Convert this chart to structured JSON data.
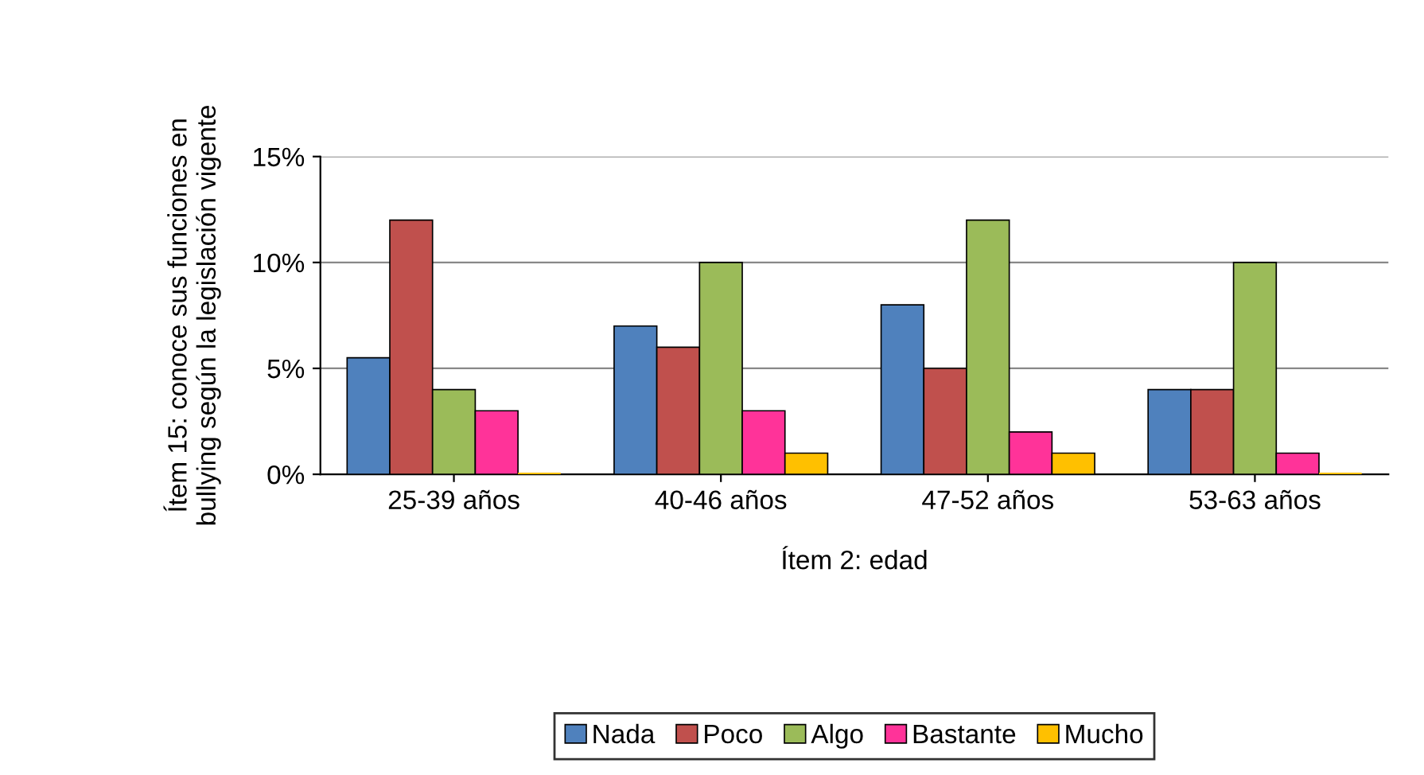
{
  "chart_data": {
    "type": "bar",
    "xlabel": "Ítem 2: edad",
    "ylabel": "Ítem 15: conoce sus funciones en\nbullying según la legislación vigente",
    "categories": [
      "25-39 años",
      "40-46 años",
      "47-52 años",
      "53-63 años"
    ],
    "series": [
      {
        "name": "Nada",
        "color": "#4f81bd",
        "values": [
          5.5,
          7,
          8,
          4
        ]
      },
      {
        "name": "Poco",
        "color": "#c0504d",
        "values": [
          12,
          6,
          5,
          4
        ]
      },
      {
        "name": "Algo",
        "color": "#9bbb59",
        "values": [
          4,
          10,
          12,
          10
        ]
      },
      {
        "name": "Bastante",
        "color": "#ff3399",
        "values": [
          3,
          3,
          2,
          1
        ]
      },
      {
        "name": "Mucho",
        "color": "#ffc000",
        "values": [
          0,
          1,
          1,
          0
        ]
      }
    ],
    "ylim": [
      0,
      15
    ],
    "yticks": [
      {
        "value": 0,
        "label": "0%"
      },
      {
        "value": 5,
        "label": "5%"
      },
      {
        "value": 10,
        "label": "10%"
      },
      {
        "value": 15,
        "label": "15%"
      }
    ],
    "grid": "y",
    "legend": "bottom"
  }
}
